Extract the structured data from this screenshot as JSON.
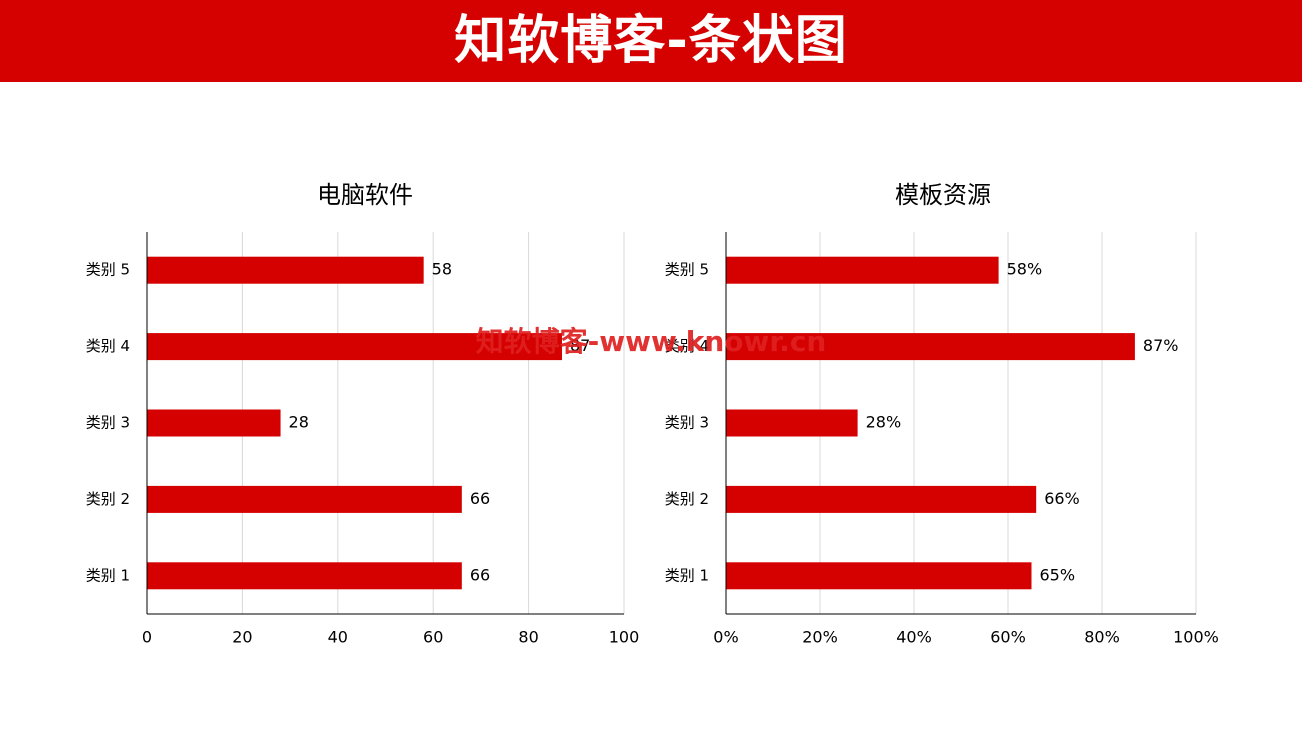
{
  "header": {
    "title": "知软博客-条状图"
  },
  "watermark": "知软博客-www.knowr.cn",
  "colors": {
    "banner": "#d50000",
    "bar": "#d50000",
    "grid": "#d9d9d9",
    "axis": "#000000",
    "text": "#000000"
  },
  "chart_data": [
    {
      "type": "bar",
      "orientation": "horizontal",
      "title": "电脑软件",
      "categories": [
        "类别 1",
        "类别 2",
        "类别 3",
        "类别 4",
        "类别 5"
      ],
      "values": [
        66,
        66,
        28,
        87,
        58
      ],
      "data_labels": [
        "66",
        "66",
        "28",
        "87",
        "58"
      ],
      "xlim": [
        0,
        100
      ],
      "xticks": [
        0,
        20,
        40,
        60,
        80,
        100
      ],
      "xtick_labels": [
        "0",
        "20",
        "40",
        "60",
        "80",
        "100"
      ],
      "grid": true,
      "legend": "none"
    },
    {
      "type": "bar",
      "orientation": "horizontal",
      "title": "模板资源",
      "categories": [
        "类别 1",
        "类别 2",
        "类别 3",
        "类别 4",
        "类别 5"
      ],
      "values": [
        65,
        66,
        28,
        87,
        58
      ],
      "data_labels": [
        "65%",
        "66%",
        "28%",
        "87%",
        "58%"
      ],
      "xlim": [
        0,
        100
      ],
      "xticks": [
        0,
        20,
        40,
        60,
        80,
        100
      ],
      "xtick_labels": [
        "0%",
        "20%",
        "40%",
        "60%",
        "80%",
        "100%"
      ],
      "grid": true,
      "legend": "none"
    }
  ]
}
